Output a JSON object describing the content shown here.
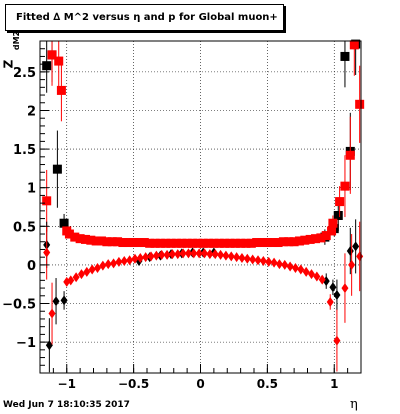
{
  "title": "Fitted ∆ M^2 versus η and p for Global muon+",
  "footer": "Wed Jun  7 18:10:35 2017",
  "chart_data": {
    "type": "scatter",
    "title": "Fitted ∆ M^2 versus η and p for Global muon+",
    "xlabel": "η",
    "ylabel_main": "Z",
    "ylabel_sub": "dM2",
    "xlim": [
      -1.2,
      1.2
    ],
    "ylim": [
      -1.4,
      2.9
    ],
    "grid": true,
    "x_ticks": [
      -1,
      -0.5,
      0,
      0.5,
      1
    ],
    "x_tick_labels": [
      "−1",
      "−0.5",
      "0",
      "0.5",
      "1"
    ],
    "y_ticks": [
      -1,
      -0.5,
      0,
      0.5,
      1,
      1.5,
      2,
      2.5
    ],
    "y_tick_labels": [
      "−1",
      "−0.5",
      "0",
      "0.5",
      "1",
      "1.5",
      "2",
      "2.5"
    ],
    "series": [
      {
        "marker": "square",
        "color": "#000000",
        "points": [
          {
            "x": -1.15,
            "y": 2.58,
            "err": 0.35
          },
          {
            "x": -1.11,
            "y": 2.72,
            "err": 0.35
          },
          {
            "x": -1.07,
            "y": 1.24,
            "err": 0.5
          },
          {
            "x": -1.02,
            "y": 0.54,
            "err": 0.12
          },
          {
            "x": 0.93,
            "y": 0.36,
            "err": 0.1
          },
          {
            "x": 1.0,
            "y": 0.47,
            "err": 0.1
          },
          {
            "x": 1.03,
            "y": 0.64,
            "err": 0.2
          },
          {
            "x": 1.08,
            "y": 2.7,
            "err": 0.4
          },
          {
            "x": 1.12,
            "y": 1.47,
            "err": 0.5
          },
          {
            "x": 1.16,
            "y": 2.86,
            "err": 0.4
          }
        ]
      },
      {
        "marker": "square",
        "color": "#ff0000",
        "points": [
          {
            "x": -1.15,
            "y": 0.83,
            "err": 0.4
          },
          {
            "x": -1.11,
            "y": 2.72,
            "err": 0.4
          },
          {
            "x": -1.06,
            "y": 2.64,
            "err": 0.4
          },
          {
            "x": -1.04,
            "y": 2.26,
            "err": 0.4
          },
          {
            "x": -1.0,
            "y": 0.44,
            "err": 0.05
          },
          {
            "x": -0.98,
            "y": 0.4,
            "err": 0.03
          },
          {
            "x": -0.94,
            "y": 0.36,
            "err": 0.02
          },
          {
            "x": -0.9,
            "y": 0.34,
            "err": 0.02
          },
          {
            "x": -0.86,
            "y": 0.33,
            "err": 0.01
          },
          {
            "x": -0.82,
            "y": 0.32,
            "err": 0.01
          },
          {
            "x": -0.78,
            "y": 0.31,
            "err": 0.01
          },
          {
            "x": -0.74,
            "y": 0.31,
            "err": 0.01
          },
          {
            "x": -0.7,
            "y": 0.3,
            "err": 0.01
          },
          {
            "x": -0.66,
            "y": 0.3,
            "err": 0.01
          },
          {
            "x": -0.62,
            "y": 0.3,
            "err": 0.01
          },
          {
            "x": -0.58,
            "y": 0.29,
            "err": 0.01
          },
          {
            "x": -0.54,
            "y": 0.29,
            "err": 0.01
          },
          {
            "x": -0.5,
            "y": 0.29,
            "err": 0.01
          },
          {
            "x": -0.46,
            "y": 0.29,
            "err": 0.01
          },
          {
            "x": -0.42,
            "y": 0.29,
            "err": 0.01
          },
          {
            "x": -0.38,
            "y": 0.28,
            "err": 0.01
          },
          {
            "x": -0.34,
            "y": 0.28,
            "err": 0.01
          },
          {
            "x": -0.3,
            "y": 0.28,
            "err": 0.01
          },
          {
            "x": -0.26,
            "y": 0.28,
            "err": 0.01
          },
          {
            "x": -0.22,
            "y": 0.28,
            "err": 0.01
          },
          {
            "x": -0.18,
            "y": 0.28,
            "err": 0.01
          },
          {
            "x": -0.14,
            "y": 0.28,
            "err": 0.01
          },
          {
            "x": -0.1,
            "y": 0.28,
            "err": 0.01
          },
          {
            "x": -0.06,
            "y": 0.28,
            "err": 0.01
          },
          {
            "x": -0.02,
            "y": 0.28,
            "err": 0.01
          },
          {
            "x": 0.02,
            "y": 0.28,
            "err": 0.01
          },
          {
            "x": 0.06,
            "y": 0.28,
            "err": 0.01
          },
          {
            "x": 0.1,
            "y": 0.28,
            "err": 0.01
          },
          {
            "x": 0.14,
            "y": 0.28,
            "err": 0.01
          },
          {
            "x": 0.18,
            "y": 0.28,
            "err": 0.01
          },
          {
            "x": 0.22,
            "y": 0.28,
            "err": 0.01
          },
          {
            "x": 0.26,
            "y": 0.28,
            "err": 0.01
          },
          {
            "x": 0.3,
            "y": 0.28,
            "err": 0.01
          },
          {
            "x": 0.34,
            "y": 0.28,
            "err": 0.01
          },
          {
            "x": 0.38,
            "y": 0.28,
            "err": 0.01
          },
          {
            "x": 0.42,
            "y": 0.29,
            "err": 0.01
          },
          {
            "x": 0.46,
            "y": 0.29,
            "err": 0.01
          },
          {
            "x": 0.5,
            "y": 0.29,
            "err": 0.01
          },
          {
            "x": 0.54,
            "y": 0.29,
            "err": 0.01
          },
          {
            "x": 0.58,
            "y": 0.29,
            "err": 0.01
          },
          {
            "x": 0.62,
            "y": 0.3,
            "err": 0.01
          },
          {
            "x": 0.66,
            "y": 0.3,
            "err": 0.01
          },
          {
            "x": 0.7,
            "y": 0.3,
            "err": 0.01
          },
          {
            "x": 0.74,
            "y": 0.31,
            "err": 0.01
          },
          {
            "x": 0.78,
            "y": 0.32,
            "err": 0.01
          },
          {
            "x": 0.82,
            "y": 0.33,
            "err": 0.01
          },
          {
            "x": 0.86,
            "y": 0.34,
            "err": 0.02
          },
          {
            "x": 0.9,
            "y": 0.35,
            "err": 0.02
          },
          {
            "x": 0.94,
            "y": 0.38,
            "err": 0.03
          },
          {
            "x": 0.98,
            "y": 0.44,
            "err": 0.04
          },
          {
            "x": 0.99,
            "y": 0.54,
            "err": 0.1
          },
          {
            "x": 1.04,
            "y": 0.82,
            "err": 0.2
          },
          {
            "x": 1.08,
            "y": 1.02,
            "err": 0.4
          },
          {
            "x": 1.12,
            "y": 1.42,
            "err": 0.5
          },
          {
            "x": 1.15,
            "y": 2.85,
            "err": 0.4
          },
          {
            "x": 1.19,
            "y": 2.08,
            "err": 0.5
          }
        ]
      },
      {
        "marker": "diamond",
        "color": "#000000",
        "points": [
          {
            "x": -1.15,
            "y": 0.26,
            "err": 0.3
          },
          {
            "x": -1.13,
            "y": -1.04,
            "err": 0.35
          },
          {
            "x": -1.08,
            "y": -0.47,
            "err": 0.3
          },
          {
            "x": -1.02,
            "y": -0.46,
            "err": 0.12
          },
          {
            "x": -0.46,
            "y": 0.05,
            "err": 0.01
          },
          {
            "x": -0.38,
            "y": 0.1,
            "err": 0.01
          },
          {
            "x": -0.3,
            "y": 0.12,
            "err": 0.01
          },
          {
            "x": -0.22,
            "y": 0.14,
            "err": 0.01
          },
          {
            "x": -0.14,
            "y": 0.15,
            "err": 0.01
          },
          {
            "x": -0.06,
            "y": 0.16,
            "err": 0.01
          },
          {
            "x": 0.02,
            "y": 0.16,
            "err": 0.01
          },
          {
            "x": 0.1,
            "y": 0.16,
            "err": 0.01
          },
          {
            "x": 0.94,
            "y": -0.21,
            "err": 0.1
          },
          {
            "x": 0.99,
            "y": -0.29,
            "err": 0.1
          },
          {
            "x": 1.02,
            "y": -0.39,
            "err": 0.2
          },
          {
            "x": 1.12,
            "y": 0.18,
            "err": 0.3
          },
          {
            "x": 1.16,
            "y": 0.24,
            "err": 0.35
          }
        ]
      },
      {
        "marker": "diamond",
        "color": "#ff0000",
        "points": [
          {
            "x": -1.15,
            "y": 0.16,
            "err": 0.35
          },
          {
            "x": -1.11,
            "y": -0.63,
            "err": 0.4
          },
          {
            "x": -1.0,
            "y": -0.22,
            "err": 0.05
          },
          {
            "x": -0.97,
            "y": -0.2,
            "err": 0.04
          },
          {
            "x": -0.93,
            "y": -0.16,
            "err": 0.03
          },
          {
            "x": -0.89,
            "y": -0.12,
            "err": 0.02
          },
          {
            "x": -0.85,
            "y": -0.09,
            "err": 0.02
          },
          {
            "x": -0.81,
            "y": -0.06,
            "err": 0.01
          },
          {
            "x": -0.77,
            "y": -0.04,
            "err": 0.01
          },
          {
            "x": -0.73,
            "y": -0.01,
            "err": 0.01
          },
          {
            "x": -0.69,
            "y": 0.01,
            "err": 0.01
          },
          {
            "x": -0.65,
            "y": 0.02,
            "err": 0.01
          },
          {
            "x": -0.61,
            "y": 0.04,
            "err": 0.01
          },
          {
            "x": -0.57,
            "y": 0.05,
            "err": 0.01
          },
          {
            "x": -0.53,
            "y": 0.06,
            "err": 0.01
          },
          {
            "x": -0.49,
            "y": 0.08,
            "err": 0.01
          },
          {
            "x": -0.45,
            "y": 0.09,
            "err": 0.01
          },
          {
            "x": -0.41,
            "y": 0.1,
            "err": 0.01
          },
          {
            "x": -0.37,
            "y": 0.11,
            "err": 0.01
          },
          {
            "x": -0.33,
            "y": 0.12,
            "err": 0.01
          },
          {
            "x": -0.29,
            "y": 0.13,
            "err": 0.01
          },
          {
            "x": -0.25,
            "y": 0.13,
            "err": 0.01
          },
          {
            "x": -0.21,
            "y": 0.14,
            "err": 0.01
          },
          {
            "x": -0.17,
            "y": 0.14,
            "err": 0.01
          },
          {
            "x": -0.13,
            "y": 0.15,
            "err": 0.01
          },
          {
            "x": -0.09,
            "y": 0.15,
            "err": 0.01
          },
          {
            "x": -0.05,
            "y": 0.15,
            "err": 0.01
          },
          {
            "x": -0.01,
            "y": 0.15,
            "err": 0.01
          },
          {
            "x": 0.03,
            "y": 0.15,
            "err": 0.01
          },
          {
            "x": 0.07,
            "y": 0.14,
            "err": 0.01
          },
          {
            "x": 0.11,
            "y": 0.14,
            "err": 0.01
          },
          {
            "x": 0.15,
            "y": 0.13,
            "err": 0.01
          },
          {
            "x": 0.19,
            "y": 0.12,
            "err": 0.01
          },
          {
            "x": 0.23,
            "y": 0.11,
            "err": 0.01
          },
          {
            "x": 0.27,
            "y": 0.1,
            "err": 0.01
          },
          {
            "x": 0.31,
            "y": 0.09,
            "err": 0.01
          },
          {
            "x": 0.35,
            "y": 0.08,
            "err": 0.01
          },
          {
            "x": 0.39,
            "y": 0.07,
            "err": 0.01
          },
          {
            "x": 0.43,
            "y": 0.06,
            "err": 0.01
          },
          {
            "x": 0.47,
            "y": 0.05,
            "err": 0.01
          },
          {
            "x": 0.51,
            "y": 0.04,
            "err": 0.01
          },
          {
            "x": 0.55,
            "y": 0.03,
            "err": 0.01
          },
          {
            "x": 0.59,
            "y": 0.01,
            "err": 0.01
          },
          {
            "x": 0.63,
            "y": 0.0,
            "err": 0.01
          },
          {
            "x": 0.67,
            "y": -0.02,
            "err": 0.01
          },
          {
            "x": 0.71,
            "y": -0.04,
            "err": 0.01
          },
          {
            "x": 0.75,
            "y": -0.06,
            "err": 0.01
          },
          {
            "x": 0.79,
            "y": -0.09,
            "err": 0.02
          },
          {
            "x": 0.83,
            "y": -0.12,
            "err": 0.02
          },
          {
            "x": 0.87,
            "y": -0.15,
            "err": 0.03
          },
          {
            "x": 0.91,
            "y": -0.19,
            "err": 0.04
          },
          {
            "x": 0.97,
            "y": -0.48,
            "err": 0.1
          },
          {
            "x": 1.02,
            "y": -0.98,
            "err": 0.4
          },
          {
            "x": 1.08,
            "y": -0.3,
            "err": 0.45
          },
          {
            "x": 1.13,
            "y": 0.0,
            "err": 0.4
          },
          {
            "x": 1.19,
            "y": 0.11,
            "err": 0.45
          }
        ]
      }
    ]
  }
}
